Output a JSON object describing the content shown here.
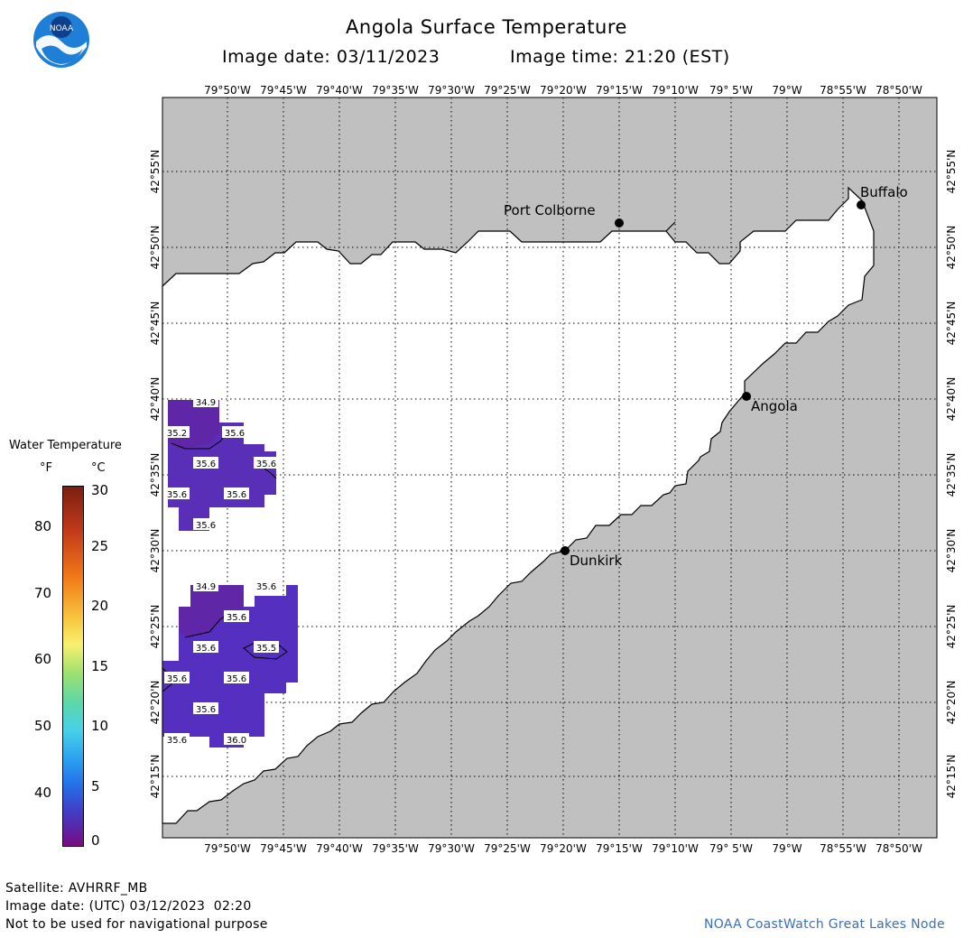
{
  "header": {
    "title": "Angola Surface Temperature",
    "subtitle_date_label": "Image date: 03/11/2023",
    "subtitle_time_label": "Image time: 21:20 (EST)"
  },
  "logo": {
    "text": "NOAA",
    "icon": "noaa-logo-icon"
  },
  "map": {
    "lon_ticks": [
      "79°50'W",
      "79°45'W",
      "79°40'W",
      "79°35'W",
      "79°30'W",
      "79°25'W",
      "79°20'W",
      "79°15'W",
      "79°10'W",
      "79° 5'W",
      "79°W",
      "78°55'W",
      "78°50'W"
    ],
    "lat_ticks": [
      "42°55'N",
      "42°50'N",
      "42°45'N",
      "42°40'N",
      "42°35'N",
      "42°30'N",
      "42°25'N",
      "42°20'N",
      "42°15'N"
    ],
    "land_color": "#c0c0c0",
    "water_color": "#ffffff",
    "cities": [
      {
        "name": "Port Colborne"
      },
      {
        "name": "Buffalo"
      },
      {
        "name": "Angola"
      },
      {
        "name": "Dunkirk"
      }
    ],
    "temperature_labels_north": [
      "34.9",
      "35.2",
      "35.6",
      "35.6",
      "35.6",
      "35.6",
      "35.6",
      "35.6"
    ],
    "temperature_labels_south": [
      "34.9",
      "35.6",
      "35.6",
      "35.6",
      "35.5",
      "35.6",
      "35.6",
      "35.6",
      "35.6",
      "36.0"
    ],
    "data_patch_colors": {
      "north": "#5a2fb8",
      "south": "#5530c0"
    }
  },
  "legend": {
    "title": "Water Temperature",
    "unit_f": "°F",
    "unit_c": "°C",
    "f_ticks": [
      "80",
      "70",
      "60",
      "50",
      "40"
    ],
    "c_ticks": [
      "30",
      "25",
      "20",
      "15",
      "10",
      "5",
      "0"
    ]
  },
  "footer": {
    "satellite": "Satellite: AVHRRF_MB",
    "utc_date": "Image date: (UTC) 03/12/2023  02:20",
    "disclaimer": "Not to be used for navigational purpose",
    "credit": "NOAA CoastWatch Great Lakes Node"
  }
}
